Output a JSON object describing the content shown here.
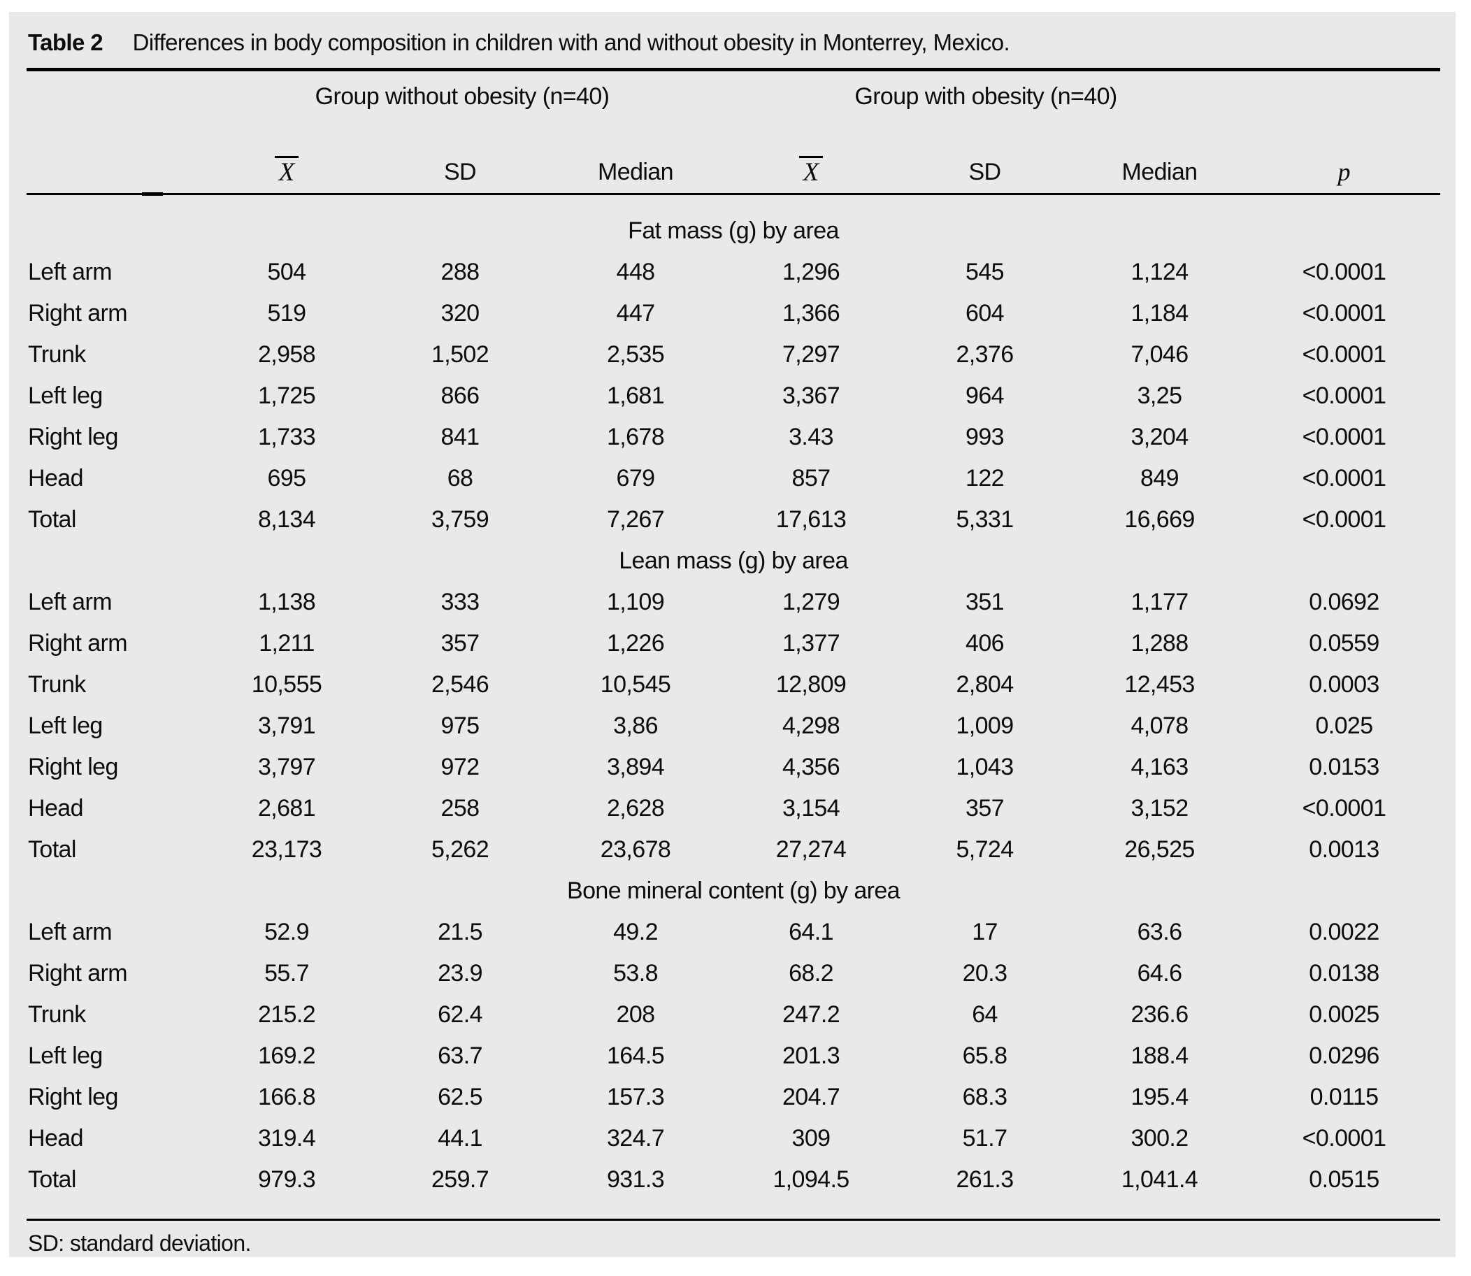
{
  "table": {
    "label": "Table 2",
    "title": "Differences in body composition in children with and without obesity in Monterrey, Mexico.",
    "group_headers": [
      "Group without obesity (n=40)",
      "Group with obesity (n=40)"
    ],
    "col_headers": {
      "mean": "X",
      "sd": "SD",
      "median": "Median",
      "p": "p"
    },
    "sections": [
      {
        "header": "Fat mass (g) by area",
        "rows": [
          {
            "label": "Left arm",
            "cells": [
              "504",
              "288",
              "448",
              "1,296",
              "545",
              "1,124",
              "<0.0001"
            ]
          },
          {
            "label": "Right arm",
            "cells": [
              "519",
              "320",
              "447",
              "1,366",
              "604",
              "1,184",
              "<0.0001"
            ]
          },
          {
            "label": "Trunk",
            "cells": [
              "2,958",
              "1,502",
              "2,535",
              "7,297",
              "2,376",
              "7,046",
              "<0.0001"
            ]
          },
          {
            "label": "Left leg",
            "cells": [
              "1,725",
              "866",
              "1,681",
              "3,367",
              "964",
              "3,25",
              "<0.0001"
            ]
          },
          {
            "label": "Right leg",
            "cells": [
              "1,733",
              "841",
              "1,678",
              "3.43",
              "993",
              "3,204",
              "<0.0001"
            ]
          },
          {
            "label": "Head",
            "cells": [
              "695",
              "68",
              "679",
              "857",
              "122",
              "849",
              "<0.0001"
            ]
          },
          {
            "label": "Total",
            "cells": [
              "8,134",
              "3,759",
              "7,267",
              "17,613",
              "5,331",
              "16,669",
              "<0.0001"
            ]
          }
        ]
      },
      {
        "header": "Lean mass (g) by area",
        "rows": [
          {
            "label": "Left arm",
            "cells": [
              "1,138",
              "333",
              "1,109",
              "1,279",
              "351",
              "1,177",
              "0.0692"
            ]
          },
          {
            "label": "Right arm",
            "cells": [
              "1,211",
              "357",
              "1,226",
              "1,377",
              "406",
              "1,288",
              "0.0559"
            ]
          },
          {
            "label": "Trunk",
            "cells": [
              "10,555",
              "2,546",
              "10,545",
              "12,809",
              "2,804",
              "12,453",
              "0.0003"
            ]
          },
          {
            "label": "Left leg",
            "cells": [
              "3,791",
              "975",
              "3,86",
              "4,298",
              "1,009",
              "4,078",
              "0.025"
            ]
          },
          {
            "label": "Right leg",
            "cells": [
              "3,797",
              "972",
              "3,894",
              "4,356",
              "1,043",
              "4,163",
              "0.0153"
            ]
          },
          {
            "label": "Head",
            "cells": [
              "2,681",
              "258",
              "2,628",
              "3,154",
              "357",
              "3,152",
              "<0.0001"
            ]
          },
          {
            "label": "Total",
            "cells": [
              "23,173",
              "5,262",
              "23,678",
              "27,274",
              "5,724",
              "26,525",
              "0.0013"
            ]
          }
        ]
      },
      {
        "header": "Bone mineral content (g) by area",
        "rows": [
          {
            "label": "Left arm",
            "cells": [
              "52.9",
              "21.5",
              "49.2",
              "64.1",
              "17",
              "63.6",
              "0.0022"
            ]
          },
          {
            "label": "Right arm",
            "cells": [
              "55.7",
              "23.9",
              "53.8",
              "68.2",
              "20.3",
              "64.6",
              "0.0138"
            ]
          },
          {
            "label": "Trunk",
            "cells": [
              "215.2",
              "62.4",
              "208",
              "247.2",
              "64",
              "236.6",
              "0.0025"
            ]
          },
          {
            "label": "Left leg",
            "cells": [
              "169.2",
              "63.7",
              "164.5",
              "201.3",
              "65.8",
              "188.4",
              "0.0296"
            ]
          },
          {
            "label": "Right leg",
            "cells": [
              "166.8",
              "62.5",
              "157.3",
              "204.7",
              "68.3",
              "195.4",
              "0.0115"
            ]
          },
          {
            "label": "Head",
            "cells": [
              "319.4",
              "44.1",
              "324.7",
              "309",
              "51.7",
              "300.2",
              "<0.0001"
            ]
          },
          {
            "label": "Total",
            "cells": [
              "979.3",
              "259.7",
              "931.3",
              "1,094.5",
              "261.3",
              "1,041.4",
              "0.0515"
            ]
          }
        ]
      }
    ],
    "footnote": "SD: standard deviation."
  }
}
